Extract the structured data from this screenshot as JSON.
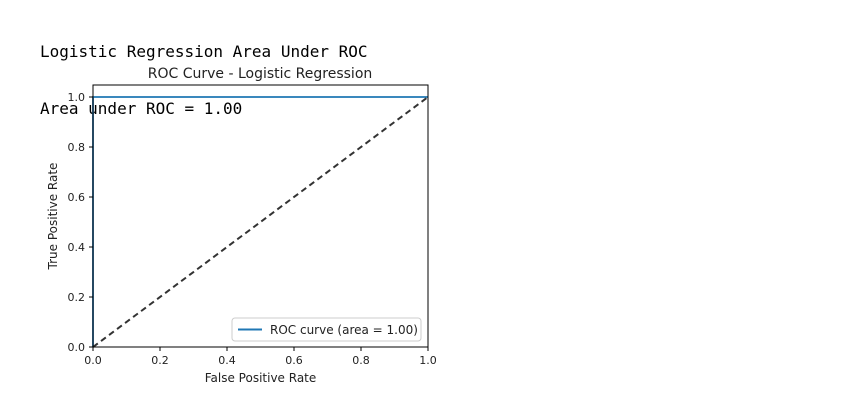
{
  "output": {
    "lines": [
      "Logistic Regression Area Under ROC",
      "Area under ROC = 1.00"
    ]
  },
  "chart_data": {
    "type": "line",
    "title": "ROC Curve - Logistic Regression",
    "xlabel": "False Positive Rate",
    "ylabel": "True Positive Rate",
    "xlim": [
      0.0,
      1.0
    ],
    "ylim": [
      0.0,
      1.0
    ],
    "xticks": [
      "0.0",
      "0.2",
      "0.4",
      "0.6",
      "0.8",
      "1.0"
    ],
    "yticks": [
      "0.0",
      "0.2",
      "0.4",
      "0.6",
      "0.8",
      "1.0"
    ],
    "grid": false,
    "legend_position": "lower-right",
    "series": [
      {
        "name": "ROC curve (area = 1.00)",
        "color": "#1f77b4",
        "style": "solid",
        "x": [
          0.0,
          0.0,
          1.0
        ],
        "y": [
          0.0,
          1.0,
          1.0
        ]
      },
      {
        "color": "#333333",
        "style": "dashed",
        "x": [
          0.0,
          1.0
        ],
        "y": [
          0.0,
          1.0
        ]
      }
    ]
  }
}
